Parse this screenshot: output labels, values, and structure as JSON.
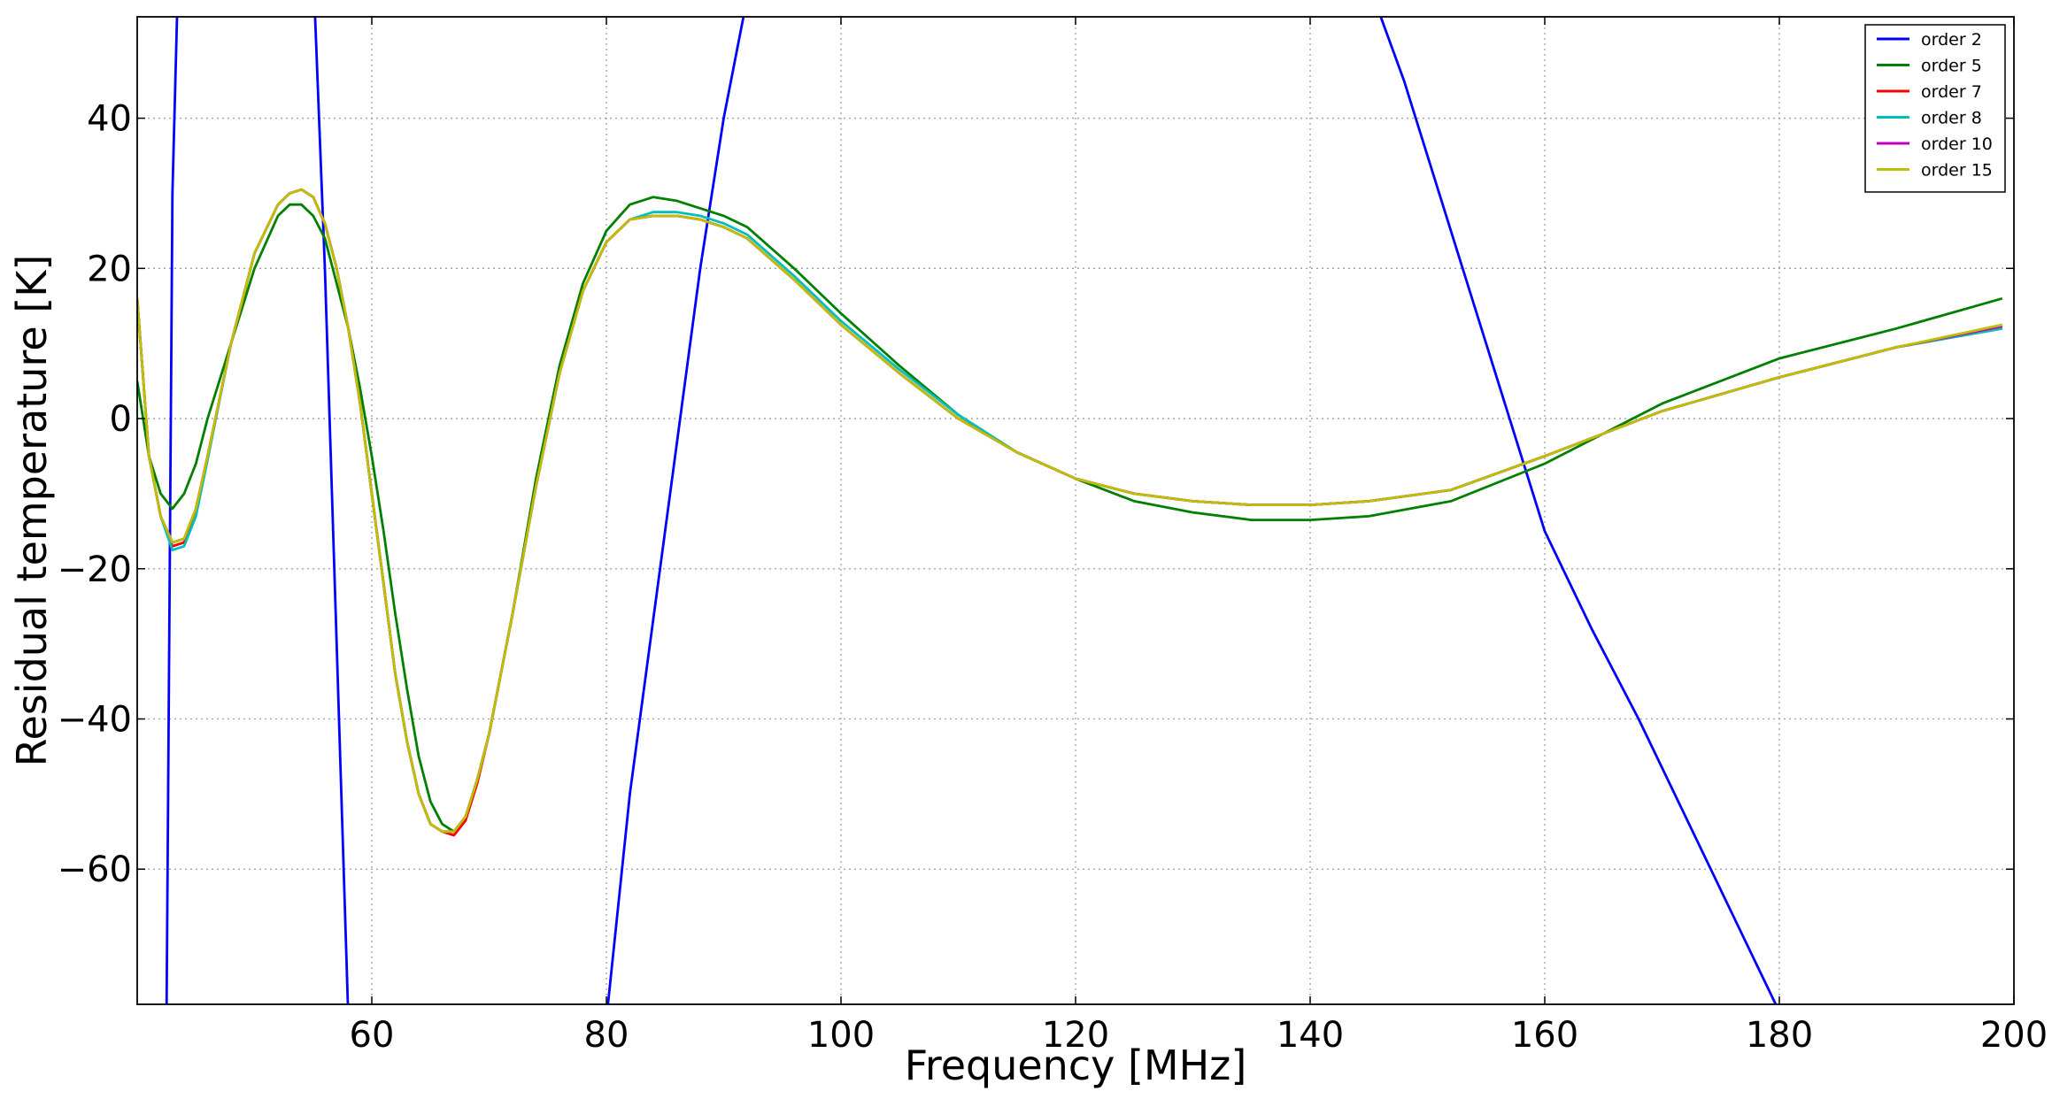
{
  "chart_data": {
    "type": "line",
    "xlabel": "Frequency [MHz]",
    "ylabel": "Residual temperature [K]",
    "xlim": [
      40,
      200
    ],
    "ylim": [
      -78,
      53.5
    ],
    "xticks": [
      60,
      80,
      100,
      120,
      140,
      160,
      180,
      200
    ],
    "yticks": [
      -60,
      -40,
      -20,
      0,
      20,
      40
    ],
    "ytick_labels": [
      "−60",
      "−40",
      "−20",
      "0",
      "20",
      "40"
    ],
    "grid": true,
    "legend_position": "top-right",
    "series": [
      {
        "name": "order 2",
        "color": "#0000ff",
        "x": [
          42.5,
          43,
          43.5,
          55,
          56,
          57,
          58,
          80,
          82,
          85,
          88,
          90,
          92.5,
          144.5,
          148,
          152,
          156,
          160,
          164,
          168,
          172,
          176,
          180
        ],
        "y": [
          -80,
          30,
          60,
          60,
          20,
          -30,
          -80,
          -80,
          -50,
          -15,
          20,
          40,
          60,
          60,
          45,
          25,
          5,
          -15,
          -28,
          -40,
          -53,
          -66,
          -79
        ]
      },
      {
        "name": "order 5",
        "color": "#008000",
        "x": [
          40,
          41,
          42,
          43,
          44,
          45,
          46,
          48,
          50,
          52,
          53,
          54,
          55,
          56,
          57,
          58,
          59,
          60,
          61,
          62,
          63,
          64,
          65,
          66,
          67,
          68,
          69,
          70,
          72,
          74,
          76,
          78,
          80,
          82,
          84,
          86,
          88,
          90,
          92,
          96,
          100,
          105,
          110,
          115,
          120,
          125,
          130,
          135,
          140,
          145,
          152,
          160,
          170,
          180,
          190,
          199
        ],
        "y": [
          5,
          -5,
          -10,
          -12,
          -10,
          -6,
          0,
          10,
          20,
          27,
          28.5,
          28.5,
          27,
          24,
          18,
          12,
          4,
          -5,
          -15,
          -26,
          -36,
          -45,
          -51,
          -54,
          -55,
          -53,
          -48,
          -42,
          -26,
          -8,
          7,
          18,
          25,
          28.5,
          29.5,
          29,
          28,
          27,
          25.5,
          20,
          14,
          7,
          0.5,
          -4.5,
          -8,
          -11,
          -12.5,
          -13.5,
          -13.5,
          -13,
          -11,
          -6,
          2,
          8,
          12,
          16
        ]
      },
      {
        "name": "order 7",
        "color": "#ff0000",
        "x": [
          40,
          41,
          42,
          43,
          44,
          45,
          46,
          48,
          50,
          52,
          53,
          54,
          55,
          56,
          57,
          58,
          59,
          60,
          61,
          62,
          63,
          64,
          65,
          66,
          67,
          68,
          69,
          70,
          72,
          74,
          76,
          78,
          80,
          82,
          84,
          86,
          88,
          90,
          92,
          96,
          100,
          105,
          110,
          115,
          120,
          125,
          130,
          135,
          140,
          145,
          152,
          160,
          170,
          180,
          190,
          199
        ],
        "y": [
          16,
          -5,
          -13,
          -17,
          -16.5,
          -12,
          -5,
          10,
          22,
          28.5,
          30,
          30.5,
          29.5,
          26,
          20,
          12,
          2,
          -10,
          -22,
          -34,
          -43,
          -50,
          -54,
          -55,
          -55.5,
          -53.5,
          -48.5,
          -42,
          -26,
          -9,
          6,
          17,
          23.5,
          26.5,
          27,
          27,
          26.5,
          25.5,
          24,
          18.5,
          12.5,
          6,
          0,
          -4.5,
          -8,
          -10,
          -11,
          -11.5,
          -11.5,
          -11,
          -9.5,
          -5,
          1,
          5.5,
          9.5,
          12
        ]
      },
      {
        "name": "order 8",
        "color": "#00bfbf",
        "x": [
          40,
          41,
          42,
          43,
          44,
          45,
          46,
          48,
          50,
          52,
          53,
          54,
          55,
          56,
          57,
          58,
          59,
          60,
          61,
          62,
          63,
          64,
          65,
          66,
          67,
          68,
          69,
          70,
          72,
          74,
          76,
          78,
          80,
          82,
          84,
          86,
          88,
          90,
          92,
          96,
          100,
          105,
          110,
          115,
          120,
          125,
          130,
          135,
          140,
          145,
          152,
          160,
          170,
          180,
          190,
          199
        ],
        "y": [
          16,
          -5,
          -13,
          -17.5,
          -17,
          -13,
          -5.5,
          10,
          22,
          28.5,
          30,
          30.5,
          29.5,
          26,
          20,
          12,
          2,
          -10,
          -22,
          -34,
          -43,
          -50,
          -54,
          -55,
          -55,
          -53,
          -48,
          -42,
          -26,
          -9,
          6,
          17,
          23.5,
          26.5,
          27.5,
          27.5,
          27,
          26,
          24.5,
          19,
          13,
          6.5,
          0.5,
          -4.5,
          -8,
          -10,
          -11,
          -11.5,
          -11.5,
          -11,
          -9.5,
          -5,
          1,
          5.5,
          9.5,
          12
        ]
      },
      {
        "name": "order 10",
        "color": "#bf00bf",
        "x": [
          40,
          41,
          42,
          43,
          44,
          45,
          46,
          48,
          50,
          52,
          53,
          54,
          55,
          56,
          57,
          58,
          59,
          60,
          61,
          62,
          63,
          64,
          65,
          66,
          67,
          68,
          69,
          70,
          72,
          74,
          76,
          78,
          80,
          82,
          84,
          86,
          88,
          90,
          92,
          96,
          100,
          105,
          110,
          115,
          120,
          125,
          130,
          135,
          140,
          145,
          152,
          160,
          170,
          180,
          190,
          199
        ],
        "y": [
          16,
          -5,
          -13,
          -16.5,
          -16,
          -12,
          -5,
          10,
          22,
          28.5,
          30,
          30.5,
          29.5,
          26,
          20,
          12,
          2,
          -10,
          -22,
          -34,
          -43,
          -50,
          -54,
          -55,
          -55,
          -53,
          -48,
          -42,
          -26,
          -9,
          6,
          17,
          23.5,
          26.5,
          27,
          27,
          26.5,
          25.5,
          24,
          18.5,
          12.5,
          6,
          0,
          -4.5,
          -8,
          -10,
          -11,
          -11.5,
          -11.5,
          -11,
          -9.5,
          -5,
          1,
          5.5,
          9.5,
          12.3
        ]
      },
      {
        "name": "order 15",
        "color": "#bfbf00",
        "x": [
          40,
          41,
          42,
          43,
          44,
          45,
          46,
          48,
          50,
          52,
          53,
          54,
          55,
          56,
          57,
          58,
          59,
          60,
          61,
          62,
          63,
          64,
          65,
          66,
          67,
          68,
          69,
          70,
          72,
          74,
          76,
          78,
          80,
          82,
          84,
          86,
          88,
          90,
          92,
          96,
          100,
          105,
          110,
          115,
          120,
          125,
          130,
          135,
          140,
          145,
          152,
          160,
          170,
          180,
          190,
          199
        ],
        "y": [
          16,
          -5,
          -13,
          -16.5,
          -16,
          -12,
          -5,
          10,
          22,
          28.5,
          30,
          30.5,
          29.5,
          26,
          20,
          12,
          2,
          -10,
          -22,
          -34,
          -43,
          -50,
          -54,
          -55,
          -55,
          -53,
          -48,
          -42,
          -26,
          -9,
          6,
          17,
          23.5,
          26.5,
          27,
          27,
          26.5,
          25.5,
          24,
          18.5,
          12.5,
          6,
          0,
          -4.5,
          -8,
          -10,
          -11,
          -11.5,
          -11.5,
          -11,
          -9.5,
          -5,
          1,
          5.5,
          9.5,
          12.5
        ]
      }
    ]
  }
}
